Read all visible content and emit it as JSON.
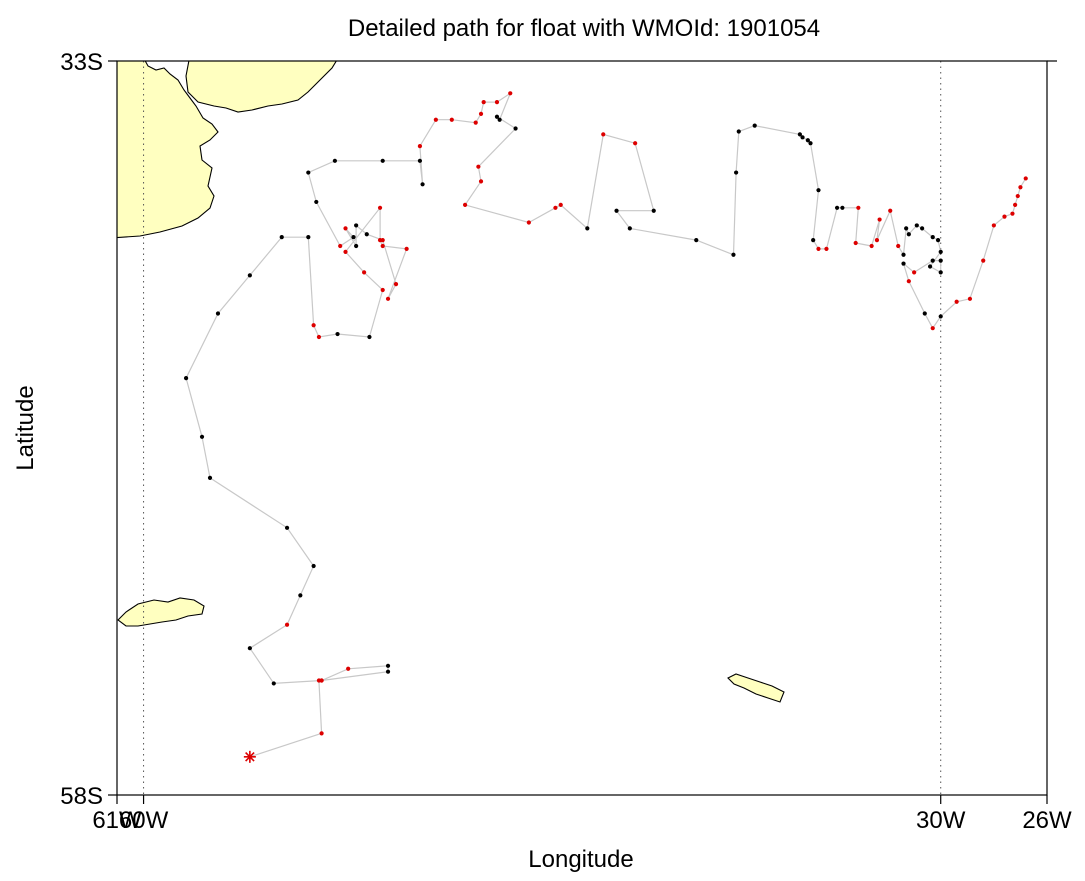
{
  "title": "Detailed path for float with WMOId: 1901054",
  "xlabel": "Longitude",
  "ylabel": "Latitude",
  "colors": {
    "land": "#ffffc0",
    "coast": "#000000",
    "track": "#c8c8c8",
    "profile_good": "#000000",
    "profile_flagged": "#dd0000",
    "start_marker": "#dd0000",
    "grid": "#555555"
  },
  "x_ticks": [
    {
      "value": -61,
      "label": "61W"
    },
    {
      "value": -60,
      "label": "60W"
    },
    {
      "value": -30,
      "label": "30W"
    },
    {
      "value": -26,
      "label": "26W"
    }
  ],
  "y_ticks": [
    {
      "value": -33,
      "label": "33S"
    },
    {
      "value": -58,
      "label": "58S"
    }
  ],
  "chart_data": {
    "type": "scatter",
    "title": "Detailed path for float with WMOId: 1901054",
    "xlabel": "Longitude",
    "ylabel": "Latitude",
    "xlim": [
      -61,
      -26
    ],
    "ylim": [
      -58,
      -33
    ],
    "gridlines_lon": [
      -60,
      -30
    ],
    "start_marker": {
      "lon": -56.0,
      "lat": -56.7,
      "symbol": "asterisk"
    },
    "track": [
      [
        -56.0,
        -56.7,
        "r"
      ],
      [
        -53.3,
        -55.9,
        "r"
      ],
      [
        -53.4,
        -54.1,
        "r"
      ],
      [
        -53.3,
        -54.1,
        "r"
      ],
      [
        -52.3,
        -53.7,
        "r"
      ],
      [
        -50.8,
        -53.6,
        "k"
      ],
      [
        -50.8,
        -53.8,
        "k"
      ],
      [
        -53.3,
        -54.1,
        "r"
      ],
      [
        -55.1,
        -54.2,
        "k"
      ],
      [
        -56.0,
        -53.0,
        "k"
      ],
      [
        -54.6,
        -52.2,
        "r"
      ],
      [
        -54.1,
        -51.2,
        "k"
      ],
      [
        -53.6,
        -50.2,
        "k"
      ],
      [
        -54.6,
        -48.9,
        "k"
      ],
      [
        -57.5,
        -47.2,
        "k"
      ],
      [
        -57.8,
        -45.8,
        "k"
      ],
      [
        -58.4,
        -43.8,
        "k"
      ],
      [
        -57.2,
        -41.6,
        "k"
      ],
      [
        -56.0,
        -40.3,
        "k"
      ],
      [
        -54.8,
        -39.0,
        "k"
      ],
      [
        -53.8,
        -39.0,
        "k"
      ],
      [
        -53.6,
        -42.0,
        "r"
      ],
      [
        -53.4,
        -42.4,
        "r"
      ],
      [
        -52.7,
        -42.3,
        "k"
      ],
      [
        -51.5,
        -42.4,
        "k"
      ],
      [
        -51.0,
        -40.8,
        "r"
      ],
      [
        -51.7,
        -40.2,
        "r"
      ],
      [
        -52.4,
        -39.5,
        "r"
      ],
      [
        -51.1,
        -38.0,
        "r"
      ],
      [
        -51.1,
        -39.1,
        "r"
      ],
      [
        -51.0,
        -39.3,
        "r"
      ],
      [
        -50.1,
        -39.4,
        "r"
      ],
      [
        -50.8,
        -41.1,
        "r"
      ],
      [
        -50.5,
        -40.6,
        "r"
      ],
      [
        -51.0,
        -39.1,
        "r"
      ],
      [
        -51.6,
        -38.9,
        "k"
      ],
      [
        -52.0,
        -38.6,
        "k"
      ],
      [
        -52.0,
        -39.3,
        "k"
      ],
      [
        -52.4,
        -38.7,
        "r"
      ],
      [
        -52.1,
        -39.0,
        "k"
      ],
      [
        -52.6,
        -39.3,
        "r"
      ],
      [
        -53.5,
        -37.8,
        "k"
      ],
      [
        -53.8,
        -36.8,
        "k"
      ],
      [
        -52.8,
        -36.4,
        "k"
      ],
      [
        -51.0,
        -36.4,
        "k"
      ],
      [
        -49.6,
        -36.4,
        "k"
      ],
      [
        -49.5,
        -37.2,
        "k"
      ],
      [
        -49.6,
        -35.9,
        "r"
      ],
      [
        -49.0,
        -35.0,
        "r"
      ],
      [
        -48.4,
        -35.0,
        "r"
      ],
      [
        -47.5,
        -35.1,
        "r"
      ],
      [
        -47.3,
        -34.8,
        "r"
      ],
      [
        -47.2,
        -34.4,
        "r"
      ],
      [
        -46.7,
        -34.4,
        "r"
      ],
      [
        -46.2,
        -34.1,
        "r"
      ],
      [
        -46.6,
        -35.0,
        "k"
      ],
      [
        -46.7,
        -34.9,
        "k"
      ],
      [
        -46.0,
        -35.3,
        "k"
      ],
      [
        -47.4,
        -36.6,
        "r"
      ],
      [
        -47.3,
        -37.1,
        "r"
      ],
      [
        -47.9,
        -37.9,
        "r"
      ],
      [
        -45.5,
        -38.5,
        "r"
      ],
      [
        -44.5,
        -38.0,
        "r"
      ],
      [
        -44.3,
        -37.9,
        "r"
      ],
      [
        -43.3,
        -38.7,
        "k"
      ],
      [
        -42.7,
        -35.5,
        "r"
      ],
      [
        -41.5,
        -35.8,
        "r"
      ],
      [
        -40.8,
        -38.1,
        "k"
      ],
      [
        -42.2,
        -38.1,
        "k"
      ],
      [
        -41.7,
        -38.7,
        "k"
      ],
      [
        -39.2,
        -39.1,
        "k"
      ],
      [
        -37.8,
        -39.6,
        "k"
      ],
      [
        -37.7,
        -36.8,
        "k"
      ],
      [
        -37.6,
        -35.4,
        "k"
      ],
      [
        -37.0,
        -35.2,
        "k"
      ],
      [
        -35.3,
        -35.5,
        "k"
      ],
      [
        -35.2,
        -35.6,
        "k"
      ],
      [
        -35.0,
        -35.7,
        "k"
      ],
      [
        -34.9,
        -35.8,
        "k"
      ],
      [
        -34.6,
        -37.4,
        "k"
      ],
      [
        -34.8,
        -39.1,
        "k"
      ],
      [
        -34.6,
        -39.4,
        "r"
      ],
      [
        -34.3,
        -39.4,
        "r"
      ],
      [
        -33.9,
        -38.0,
        "k"
      ],
      [
        -33.7,
        -38.0,
        "k"
      ],
      [
        -33.1,
        -38.0,
        "r"
      ],
      [
        -33.2,
        -39.2,
        "r"
      ],
      [
        -32.6,
        -39.3,
        "r"
      ],
      [
        -32.3,
        -38.4,
        "r"
      ],
      [
        -32.4,
        -39.1,
        "r"
      ],
      [
        -31.9,
        -38.1,
        "r"
      ],
      [
        -31.6,
        -39.3,
        "r"
      ],
      [
        -31.4,
        -39.6,
        "k"
      ],
      [
        -31.3,
        -38.7,
        "k"
      ],
      [
        -31.2,
        -38.9,
        "k"
      ],
      [
        -30.9,
        -38.6,
        "k"
      ],
      [
        -30.7,
        -38.7,
        "k"
      ],
      [
        -30.3,
        -39.0,
        "k"
      ],
      [
        -30.1,
        -39.1,
        "k"
      ],
      [
        -30.0,
        -39.5,
        "k"
      ],
      [
        -30.4,
        -40.0,
        "k"
      ],
      [
        -30.0,
        -40.2,
        "k"
      ],
      [
        -30.0,
        -39.8,
        "k"
      ],
      [
        -30.3,
        -39.8,
        "k"
      ],
      [
        -31.0,
        -40.2,
        "r"
      ],
      [
        -31.4,
        -39.9,
        "k"
      ],
      [
        -31.2,
        -40.5,
        "r"
      ],
      [
        -30.6,
        -41.6,
        "k"
      ],
      [
        -30.3,
        -42.1,
        "r"
      ],
      [
        -30.0,
        -41.7,
        "k"
      ],
      [
        -29.4,
        -41.2,
        "r"
      ],
      [
        -28.9,
        -41.1,
        "r"
      ],
      [
        -28.4,
        -39.8,
        "r"
      ],
      [
        -28.0,
        -38.6,
        "r"
      ],
      [
        -27.6,
        -38.3,
        "r"
      ],
      [
        -27.3,
        -38.2,
        "r"
      ],
      [
        -27.2,
        -37.9,
        "r"
      ],
      [
        -27.1,
        -37.6,
        "r"
      ],
      [
        -27.0,
        -37.3,
        "r"
      ],
      [
        -26.8,
        -37.0,
        "r"
      ]
    ],
    "land_features": [
      "South America coast",
      "Falkland Islands",
      "South Georgia"
    ]
  }
}
